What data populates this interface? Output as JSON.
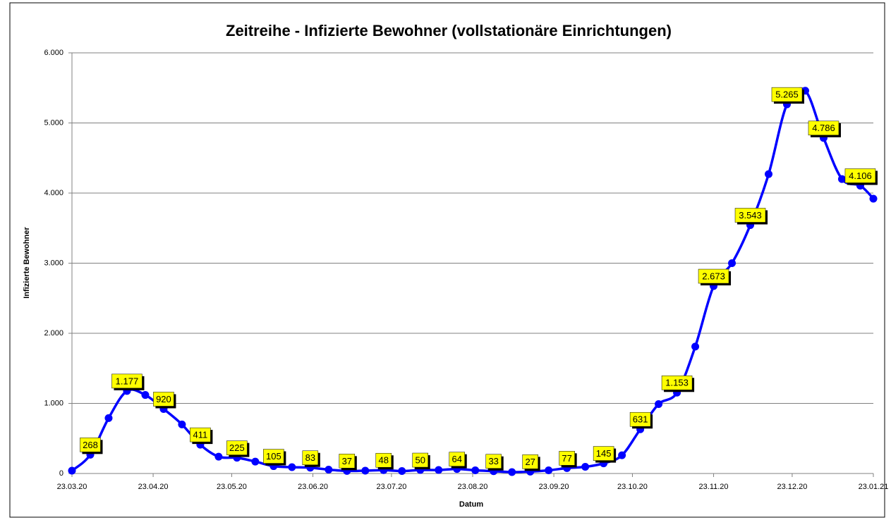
{
  "chart_data": {
    "type": "line",
    "title": "Zeitreihe - Infizierte Bewohner (vollstationäre Einrichtungen)",
    "x_label": "Datum",
    "y_label": "Infizierte Bewohner",
    "x": [
      "2020-03-23",
      "2020-03-30",
      "2020-04-06",
      "2020-04-13",
      "2020-04-20",
      "2020-04-27",
      "2020-05-04",
      "2020-05-11",
      "2020-05-18",
      "2020-05-25",
      "2020-06-01",
      "2020-06-08",
      "2020-06-15",
      "2020-06-22",
      "2020-06-29",
      "2020-07-06",
      "2020-07-13",
      "2020-07-20",
      "2020-07-27",
      "2020-08-03",
      "2020-08-10",
      "2020-08-17",
      "2020-08-24",
      "2020-08-31",
      "2020-09-07",
      "2020-09-14",
      "2020-09-21",
      "2020-09-28",
      "2020-10-05",
      "2020-10-12",
      "2020-10-19",
      "2020-10-26",
      "2020-11-02",
      "2020-11-09",
      "2020-11-16",
      "2020-11-23",
      "2020-11-30",
      "2020-12-07",
      "2020-12-14",
      "2020-12-21",
      "2020-12-28",
      "2021-01-04",
      "2021-01-11",
      "2021-01-18",
      "2021-01-23"
    ],
    "series": [
      {
        "color": "#0000ff",
        "values": [
          40,
          268,
          790,
          1177,
          1120,
          920,
          700,
          411,
          240,
          225,
          170,
          105,
          90,
          83,
          55,
          37,
          40,
          48,
          35,
          50,
          50,
          64,
          45,
          33,
          20,
          27,
          45,
          77,
          95,
          145,
          260,
          631,
          990,
          1153,
          1810,
          2673,
          3000,
          3543,
          4270,
          5265,
          5460,
          4786,
          4200,
          4106,
          3920
        ],
        "value_labels": [
          null,
          "268",
          null,
          "1.177",
          null,
          "920",
          null,
          "411",
          null,
          "225",
          null,
          "105",
          null,
          "83",
          null,
          "37",
          null,
          "48",
          null,
          "50",
          null,
          "64",
          null,
          "33",
          null,
          "27",
          null,
          "77",
          null,
          "145",
          null,
          "631",
          null,
          "1.153",
          null,
          "2.673",
          null,
          "3.543",
          null,
          "5.265",
          null,
          "4.786",
          null,
          "4.106",
          null
        ]
      }
    ],
    "xlim": [
      "2020-03-23",
      "2021-01-23"
    ],
    "xticks": [
      {
        "value": "2020-03-23",
        "label": "23.03.20"
      },
      {
        "value": "2020-04-23",
        "label": "23.04.20"
      },
      {
        "value": "2020-05-23",
        "label": "23.05.20"
      },
      {
        "value": "2020-06-23",
        "label": "23.06.20"
      },
      {
        "value": "2020-07-23",
        "label": "23.07.20"
      },
      {
        "value": "2020-08-23",
        "label": "23.08.20"
      },
      {
        "value": "2020-09-23",
        "label": "23.09.20"
      },
      {
        "value": "2020-10-23",
        "label": "23.10.20"
      },
      {
        "value": "2020-11-23",
        "label": "23.11.20"
      },
      {
        "value": "2020-12-23",
        "label": "23.12.20"
      },
      {
        "value": "2021-01-23",
        "label": "23.01.21"
      }
    ],
    "ylim": [
      0,
      6000
    ],
    "yticks": [
      0,
      {
        "value": 1000,
        "label": "1.000"
      },
      {
        "value": 2000,
        "label": "2.000"
      },
      {
        "value": 3000,
        "label": "3.000"
      },
      {
        "value": 4000,
        "label": "4.000"
      },
      {
        "value": 5000,
        "label": "5.000"
      },
      {
        "value": 6000,
        "label": "6.000"
      }
    ],
    "grid": true,
    "label_color": "#ffff00"
  }
}
